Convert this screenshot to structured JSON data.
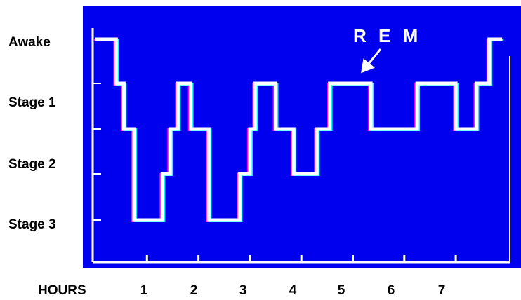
{
  "colors": {
    "plot_background": "#0000ee",
    "trace": "#ffffff",
    "trace_shadow_cyan": "#00ffff",
    "trace_shadow_magenta": "#ff00ff",
    "text": "#000000"
  },
  "chart_data": {
    "type": "line",
    "title": "",
    "xlabel": "HOURS",
    "ylabel": "",
    "x_ticks": [
      "1",
      "2",
      "3",
      "4",
      "5",
      "6",
      "7"
    ],
    "y_categories": [
      "Awake",
      "Stage 1",
      "Stage 2",
      "Stage 3"
    ],
    "annotation": {
      "text": "R E M",
      "points_to_hour": 5.4,
      "points_to_level": 1
    },
    "grid": false,
    "legend": "none",
    "step_line": true,
    "x_range": [
      0,
      7.9
    ],
    "level_scale": "0 = Awake, 1 = Stage 1, 2 = midway between Stage 1 and Stage 2, 3 = Stage 2, 4 = Stage 3",
    "series": [
      {
        "points": [
          {
            "hour": 0.0,
            "level": 0
          },
          {
            "hour": 0.4,
            "level": 1
          },
          {
            "hour": 0.55,
            "level": 2
          },
          {
            "hour": 0.75,
            "level": 4
          },
          {
            "hour": 1.3,
            "level": 3
          },
          {
            "hour": 1.45,
            "level": 2
          },
          {
            "hour": 1.6,
            "level": 1
          },
          {
            "hour": 1.85,
            "level": 2
          },
          {
            "hour": 2.2,
            "level": 4
          },
          {
            "hour": 2.8,
            "level": 3
          },
          {
            "hour": 3.0,
            "level": 2
          },
          {
            "hour": 3.1,
            "level": 1
          },
          {
            "hour": 3.5,
            "level": 2
          },
          {
            "hour": 3.85,
            "level": 3
          },
          {
            "hour": 4.3,
            "level": 2
          },
          {
            "hour": 4.55,
            "level": 1
          },
          {
            "hour": 5.35,
            "level": 2
          },
          {
            "hour": 6.25,
            "level": 1
          },
          {
            "hour": 7.0,
            "level": 2
          },
          {
            "hour": 7.4,
            "level": 1
          },
          {
            "hour": 7.65,
            "level": 0
          },
          {
            "hour": 7.9,
            "level": 0
          }
        ]
      }
    ]
  }
}
